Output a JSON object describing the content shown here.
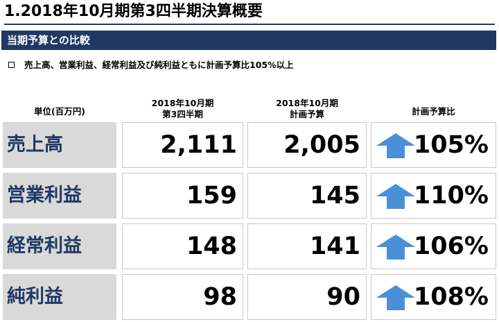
{
  "page": {
    "title": "1.2018年10月期第3四半期決算概要",
    "section": "当期予算との比較",
    "bullet": "売上高、営業利益、経常利益及び純利益ともに計画予算比105%以上"
  },
  "table": {
    "unit_label": "単位(百万円)",
    "col_actual": [
      "2018年10月期",
      "第3四半期"
    ],
    "col_plan": [
      "2018年10月期",
      "計画予算"
    ],
    "col_ratio": "計画予算比",
    "arrow_color": "#4a90d9",
    "rows": [
      {
        "label": "売上高",
        "actual": "2,111",
        "plan": "2,005",
        "ratio": "105%",
        "trend": "up-arrow-icon"
      },
      {
        "label": "営業利益",
        "actual": "159",
        "plan": "145",
        "ratio": "110%",
        "trend": "up-arrow-icon"
      },
      {
        "label": "経常利益",
        "actual": "148",
        "plan": "141",
        "ratio": "106%",
        "trend": "up-arrow-icon"
      },
      {
        "label": "純利益",
        "actual": "98",
        "plan": "90",
        "ratio": "108%",
        "trend": "up-arrow-icon"
      }
    ]
  }
}
